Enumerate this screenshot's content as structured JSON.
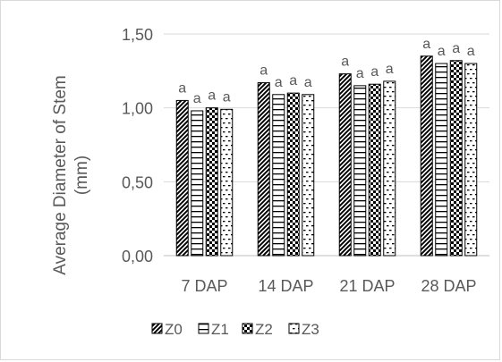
{
  "chart_data": {
    "type": "bar",
    "ylabel_line1": "Average Diameter of Stem",
    "ylabel_line2": "(mm)",
    "xlabel": "",
    "ylim": [
      0,
      1.5
    ],
    "yticks": [
      "0,00",
      "0,50",
      "1,00",
      "1,50"
    ],
    "ytick_values": [
      0,
      0.5,
      1.0,
      1.5
    ],
    "grid": true,
    "legend_position": "bottom",
    "categories": [
      "7 DAP",
      "14 DAP",
      "21 DAP",
      "28 DAP"
    ],
    "series": [
      {
        "name": "Z0",
        "pattern": "diag",
        "values": [
          1.05,
          1.17,
          1.23,
          1.35
        ],
        "labels": [
          "a",
          "a",
          "a",
          "a"
        ]
      },
      {
        "name": "Z1",
        "pattern": "hlines",
        "values": [
          0.98,
          1.09,
          1.15,
          1.3
        ],
        "labels": [
          "a",
          "a",
          "a",
          "a"
        ]
      },
      {
        "name": "Z2",
        "pattern": "checker",
        "values": [
          1.0,
          1.1,
          1.16,
          1.32
        ],
        "labels": [
          "a",
          "a",
          "a",
          "a"
        ]
      },
      {
        "name": "Z3",
        "pattern": "dashes",
        "values": [
          0.99,
          1.09,
          1.18,
          1.3
        ],
        "labels": [
          "a",
          "a",
          "a",
          "a"
        ]
      }
    ]
  }
}
